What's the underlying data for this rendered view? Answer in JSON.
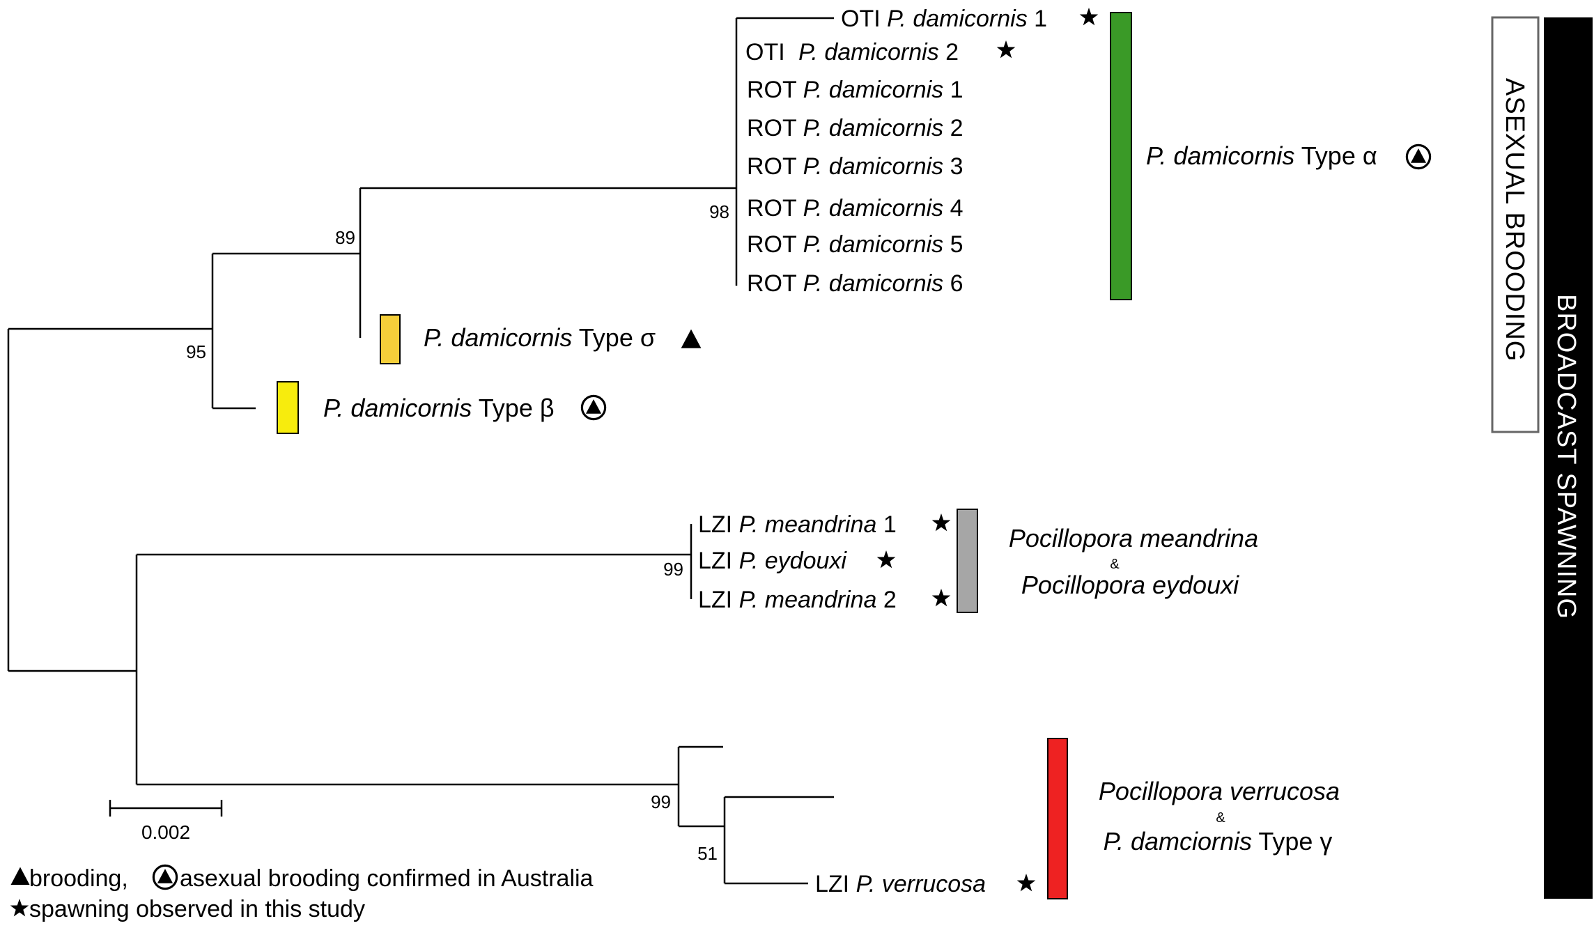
{
  "taxa": {
    "oti1": {
      "site": "OTI",
      "species": "P. damicornis",
      "num": " 1"
    },
    "oti2": {
      "site": "OTI",
      "species": "P. damicornis",
      "num": " 2"
    },
    "rot1": {
      "site": "ROT",
      "species": "P. damicornis",
      "num": " 1"
    },
    "rot2": {
      "site": "ROT",
      "species": "P. damicornis",
      "num": " 2"
    },
    "rot3": {
      "site": "ROT",
      "species": "P. damicornis",
      "num": " 3"
    },
    "rot4": {
      "site": "ROT",
      "species": "P. damicornis",
      "num": " 4"
    },
    "rot5": {
      "site": "ROT",
      "species": "P. damicornis",
      "num": " 5"
    },
    "rot6": {
      "site": "ROT",
      "species": "P. damicornis",
      "num": " 6"
    },
    "sigma": {
      "species": "P. damicornis",
      "type": " Type σ"
    },
    "beta": {
      "species": "P. damicornis",
      "type": " Type β"
    },
    "lzi_mea1": {
      "site": "LZI",
      "species": "P. meandrina",
      "num": " 1"
    },
    "lzi_eyd": {
      "site": "LZI",
      "species": "P. eydouxi",
      "num": ""
    },
    "lzi_mea2": {
      "site": "LZI",
      "species": "P. meandrina",
      "num": " 2"
    },
    "lzi_ver": {
      "site": "LZI",
      "species": "P. verrucosa",
      "num": ""
    }
  },
  "bootstrap": {
    "n98": "98",
    "n89": "89",
    "n95": "95",
    "n99a": "99",
    "n99b": "99",
    "n51": "51"
  },
  "clades": {
    "alpha": {
      "species": "P. damicornis",
      "type": " Type α",
      "color": "#3a9a27"
    },
    "sigma_color": "#f5cf3a",
    "beta_color": "#f7ec0d",
    "mea_eyd": {
      "line1": "Pocillopora meandrina",
      "amp": "&",
      "line2": "Pocillopora eydouxi",
      "color": "#a6a6a6"
    },
    "ver_gamma": {
      "line1": "Pocillopora verrucosa",
      "amp": "&",
      "line2_species": "P. damciornis",
      "line2_type": " Type γ",
      "color": "#ee2222"
    }
  },
  "scale": {
    "label": "0.002"
  },
  "bars": {
    "asexual": "ASEXUAL BROODING",
    "broadcast": "BROADCAST SPAWNING"
  },
  "legend": {
    "line1a": " brooding, ",
    "line1b": "asexual brooding confirmed in Australia",
    "line2": " spawning observed in this study"
  },
  "icons": [
    "star-icon",
    "triangle-icon",
    "circled-triangle-icon"
  ]
}
